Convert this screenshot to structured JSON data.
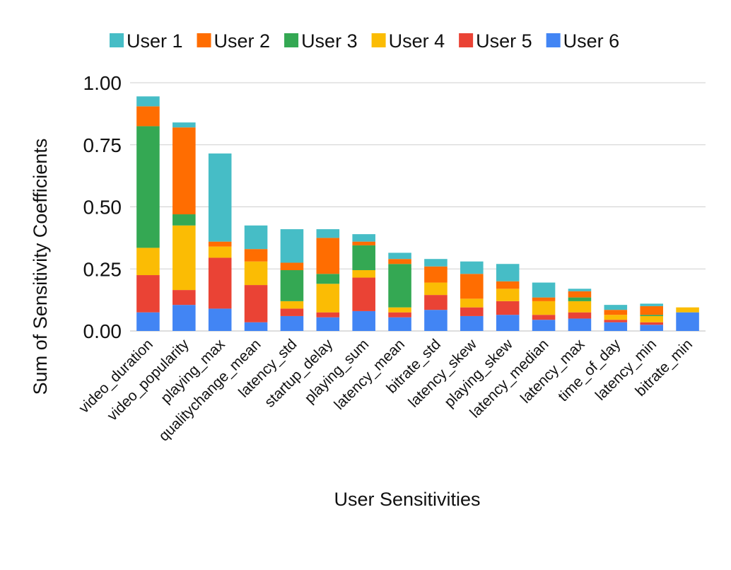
{
  "chart_data": {
    "type": "bar",
    "stacked": true,
    "title": "",
    "xlabel": "User Sensitivities",
    "ylabel": "Sum of Sensitivity Coefficients",
    "ylim": [
      0,
      1
    ],
    "yticks": [
      "0.00",
      "0.25",
      "0.50",
      "0.75",
      "1.00"
    ],
    "ytick_values": [
      0,
      0.25,
      0.5,
      0.75,
      1.0
    ],
    "grid": true,
    "legend_position": "top",
    "categories": [
      "video_duration",
      "video_popularity",
      "playing_max",
      "qualitychange_mean",
      "latency_std",
      "startup_delay",
      "playing_sum",
      "latency_mean",
      "bitrate_std",
      "latency_skew",
      "playing_skew",
      "latency_median",
      "latency_max",
      "time_of_day",
      "latency_min",
      "bitrate_min"
    ],
    "stack_order": [
      "User 6",
      "User 5",
      "User 4",
      "User 3",
      "User 2",
      "User 1"
    ],
    "series": [
      {
        "name": "User 1",
        "color": "#46bdc6",
        "values": [
          0.04,
          0.02,
          0.355,
          0.095,
          0.135,
          0.035,
          0.03,
          0.025,
          0.03,
          0.05,
          0.07,
          0.06,
          0.01,
          0.02,
          0.01,
          0.0
        ]
      },
      {
        "name": "User 2",
        "color": "#ff6d01",
        "values": [
          0.08,
          0.35,
          0.02,
          0.05,
          0.03,
          0.145,
          0.015,
          0.02,
          0.065,
          0.1,
          0.03,
          0.015,
          0.025,
          0.02,
          0.035,
          0.0
        ]
      },
      {
        "name": "User 3",
        "color": "#34a853",
        "values": [
          0.49,
          0.045,
          0.0,
          0.0,
          0.125,
          0.04,
          0.1,
          0.175,
          0.0,
          0.0,
          0.0,
          0.0,
          0.015,
          0.0,
          0.005,
          0.0
        ]
      },
      {
        "name": "User 4",
        "color": "#fbbc04",
        "values": [
          0.11,
          0.26,
          0.045,
          0.095,
          0.03,
          0.115,
          0.03,
          0.02,
          0.05,
          0.035,
          0.05,
          0.055,
          0.045,
          0.02,
          0.025,
          0.02
        ]
      },
      {
        "name": "User 5",
        "color": "#ea4335",
        "values": [
          0.15,
          0.06,
          0.205,
          0.15,
          0.03,
          0.02,
          0.135,
          0.02,
          0.06,
          0.035,
          0.055,
          0.02,
          0.025,
          0.01,
          0.01,
          0.0
        ]
      },
      {
        "name": "User 6",
        "color": "#4285f4",
        "values": [
          0.075,
          0.105,
          0.09,
          0.035,
          0.06,
          0.055,
          0.08,
          0.055,
          0.085,
          0.06,
          0.065,
          0.045,
          0.05,
          0.035,
          0.025,
          0.075
        ]
      }
    ]
  }
}
